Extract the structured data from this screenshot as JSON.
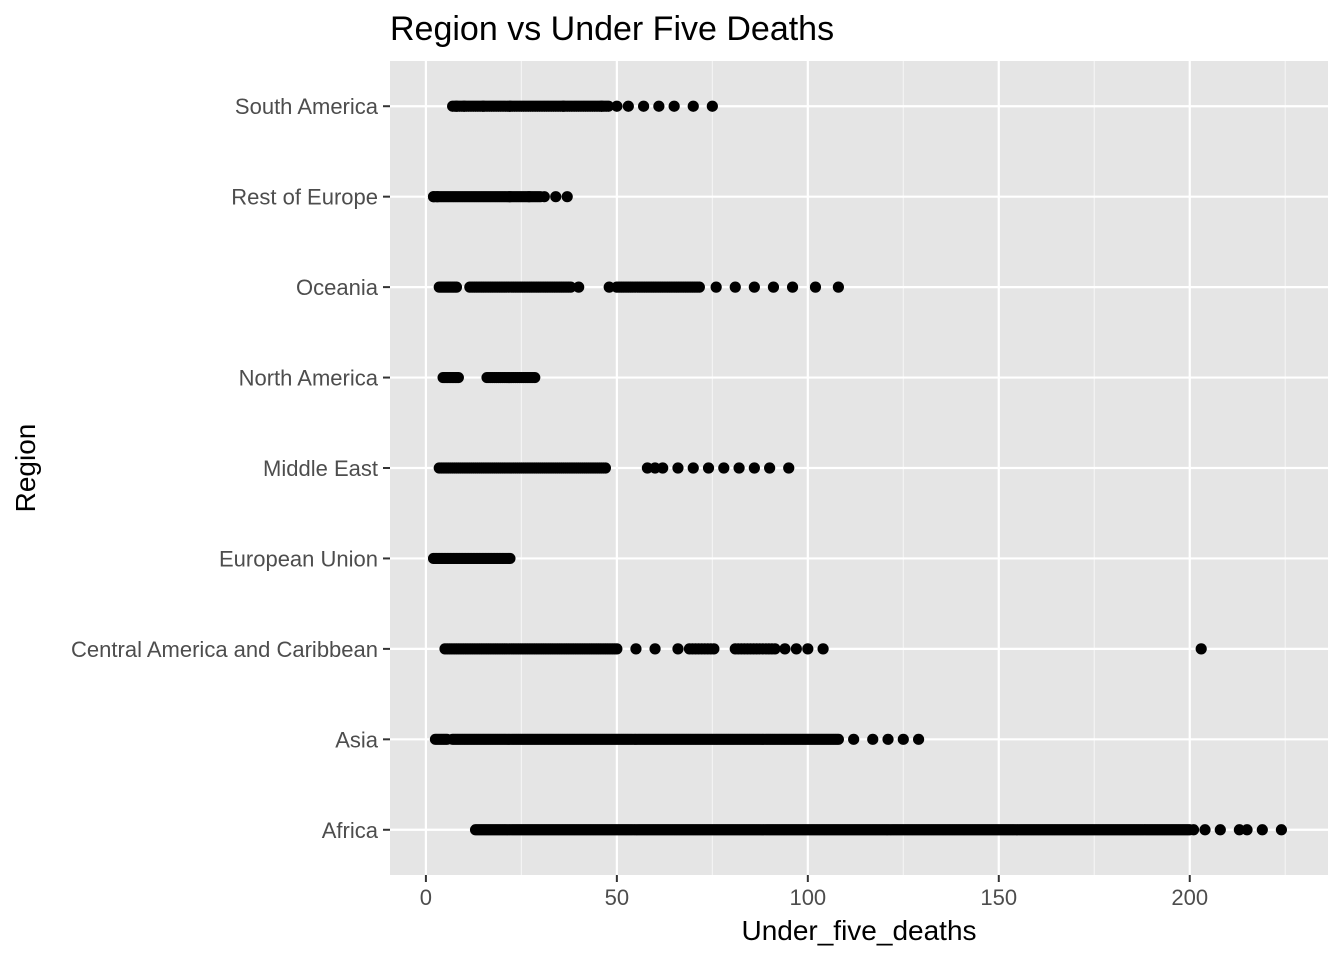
{
  "chart_data": {
    "type": "scatter",
    "title": "Region vs Under Five Deaths",
    "xlabel": "Under_five_deaths",
    "ylabel": "Region",
    "xlim": [
      -9.4,
      236.2
    ],
    "x_ticks": [
      0,
      50,
      100,
      150,
      200
    ],
    "x_minor_ticks": [
      25,
      75,
      125,
      175,
      225
    ],
    "categories": [
      "Africa",
      "Asia",
      "Central America and Caribbean",
      "European Union",
      "Middle East",
      "North America",
      "Oceania",
      "Rest of Europe",
      "South America"
    ],
    "grid": true,
    "legend": "none",
    "colors": {
      "panel": "#e5e5e5",
      "grid": "#ffffff",
      "point": "#000000",
      "tick_text": "#4d4d4d",
      "tick_mark": "#333333"
    },
    "series": [
      {
        "category": "South America",
        "ranges": [
          [
            7,
            48,
            0.6
          ]
        ],
        "points": [
          8,
          10,
          15,
          22,
          36,
          46,
          50,
          53,
          57,
          61,
          65,
          70,
          75
        ]
      },
      {
        "category": "Rest of Europe",
        "ranges": [
          [
            2,
            30,
            0.5
          ]
        ],
        "points": [
          2,
          3,
          22,
          27,
          31,
          34,
          37
        ]
      },
      {
        "category": "Oceania",
        "ranges": [
          [
            3.5,
            8,
            0.5
          ],
          [
            11.5,
            38,
            0.6
          ],
          [
            50,
            72,
            0.6
          ]
        ],
        "points": [
          40,
          48,
          76,
          81,
          86,
          91,
          96,
          102,
          108
        ]
      },
      {
        "category": "North America",
        "ranges": [
          [
            4.5,
            8.5,
            0.4
          ],
          [
            16,
            28.5,
            0.5
          ]
        ],
        "points": []
      },
      {
        "category": "Middle East",
        "ranges": [
          [
            3.5,
            47,
            0.5
          ]
        ],
        "points": [
          58,
          60,
          62,
          66,
          70,
          74,
          78,
          82,
          86,
          90,
          95
        ]
      },
      {
        "category": "European Union",
        "ranges": [
          [
            2,
            22,
            0.4
          ]
        ],
        "points": []
      },
      {
        "category": "Central America and Caribbean",
        "ranges": [
          [
            5,
            50,
            0.6
          ],
          [
            69,
            76,
            0.8
          ],
          [
            81,
            92,
            0.8
          ]
        ],
        "points": [
          55,
          60,
          66,
          94,
          97,
          100,
          104,
          203
        ]
      },
      {
        "category": "Asia",
        "ranges": [
          [
            2.5,
            5.5,
            0.5
          ],
          [
            7,
            108,
            0.5
          ]
        ],
        "points": [
          112,
          117,
          121,
          125,
          129
        ]
      },
      {
        "category": "Africa",
        "ranges": [
          [
            13,
            200,
            0.5
          ]
        ],
        "points": [
          201,
          204,
          208,
          213,
          215,
          219,
          224
        ]
      }
    ]
  }
}
